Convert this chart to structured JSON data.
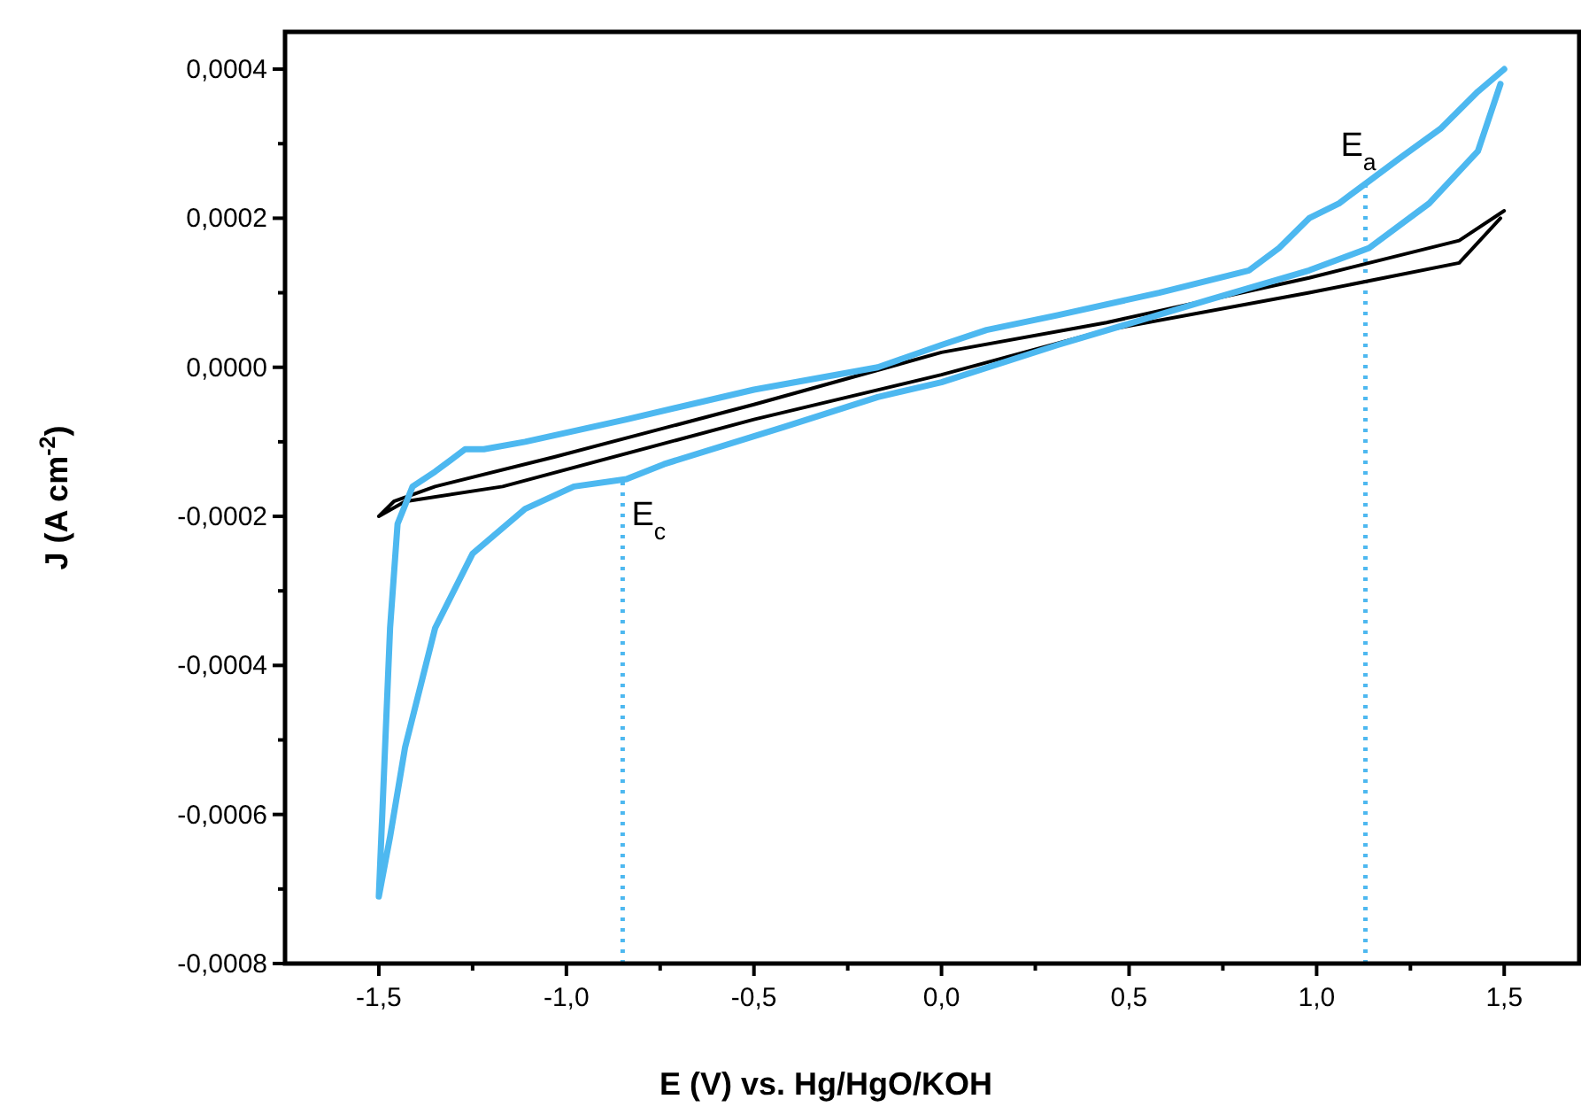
{
  "chart_data": {
    "type": "line",
    "xlabel": "E (V) vs. Hg/HgO/KOH",
    "ylabel": "J (A cm$^{-2}$)",
    "xlim": [
      -1.75,
      1.7
    ],
    "ylim": [
      -0.0008,
      0.00045
    ],
    "xticks": [
      {
        "value": -1.5,
        "label": "-1,5"
      },
      {
        "value": -1.25,
        "label": null
      },
      {
        "value": -1,
        "label": "-1,0"
      },
      {
        "value": -0.75,
        "label": null
      },
      {
        "value": -0.5,
        "label": "-0,5"
      },
      {
        "value": -0.25,
        "label": null
      },
      {
        "value": 0,
        "label": "0,0"
      },
      {
        "value": 0.25,
        "label": null
      },
      {
        "value": 0.5,
        "label": "0,5"
      },
      {
        "value": 0.75,
        "label": null
      },
      {
        "value": 1,
        "label": "1,0"
      },
      {
        "value": 1.25,
        "label": null
      },
      {
        "value": 1.5,
        "label": "1,5"
      }
    ],
    "yticks": [
      {
        "value": -0.0008,
        "label": "-0,0008"
      },
      {
        "value": -0.0007,
        "label": null
      },
      {
        "value": -0.0006,
        "label": "-0,0006"
      },
      {
        "value": -0.0005,
        "label": null
      },
      {
        "value": -0.0004,
        "label": "-0,0004"
      },
      {
        "value": -0.0003,
        "label": null
      },
      {
        "value": -0.0002,
        "label": "-0,0002"
      },
      {
        "value": -0.0001,
        "label": null
      },
      {
        "value": 0,
        "label": "0,0000"
      },
      {
        "value": 0.0001,
        "label": null
      },
      {
        "value": 0.0002,
        "label": "0,0002"
      },
      {
        "value": 0.0003,
        "label": null
      },
      {
        "value": 0.0004,
        "label": "0,0004"
      }
    ],
    "grid": false,
    "marker": "none",
    "line_style": "solid",
    "series": [
      {
        "color": "#000000",
        "x": [
          1.5,
          1.38,
          0.98,
          0.44,
          0,
          -0.5,
          -1.03,
          -1.35,
          -1.46,
          -1.5,
          -1.43,
          -1.17,
          -0.5,
          0,
          0.44,
          0.98,
          1.38,
          1.49
        ],
        "values": [
          0.00021,
          0.00017,
          0.00012,
          6e-05,
          2e-05,
          -5e-05,
          -0.00012,
          -0.00016,
          -0.00018,
          -0.0002,
          -0.00018,
          -0.00016,
          -7e-05,
          -1e-05,
          5e-05,
          0.0001,
          0.00014,
          0.0002
        ]
      },
      {
        "color": "#4db8f0",
        "x": [
          1.5,
          1.43,
          1.33,
          1.22,
          1.14,
          1.06,
          0.98,
          0.9,
          0.82,
          0.58,
          0.31,
          0.12,
          0,
          -0.17,
          -0.5,
          -0.84,
          -1.11,
          -1.22,
          -1.27,
          -1.35,
          -1.41,
          -1.45,
          -1.47,
          -1.49,
          -1.5,
          -1.47,
          -1.43,
          -1.35,
          -1.25,
          -1.11,
          -0.98,
          -0.84,
          -0.74,
          -0.42,
          -0.17,
          0,
          0.31,
          0.71,
          0.98,
          1.14,
          1.3,
          1.43,
          1.49
        ],
        "values": [
          0.0004,
          0.00037,
          0.00032,
          0.00028,
          0.00025,
          0.00022,
          0.0002,
          0.00016,
          0.00013,
          0.0001,
          7e-05,
          5e-05,
          3e-05,
          0,
          -3e-05,
          -7e-05,
          -0.0001,
          -0.00011,
          -0.00011,
          -0.00014,
          -0.00016,
          -0.00021,
          -0.00035,
          -0.00059,
          -0.00071,
          -0.00063,
          -0.00051,
          -0.00035,
          -0.00025,
          -0.00019,
          -0.00016,
          -0.00015,
          -0.00013,
          -8e-05,
          -4e-05,
          -2e-05,
          3e-05,
          9e-05,
          0.00013,
          0.00016,
          0.00022,
          0.00029,
          0.00038
        ]
      }
    ],
    "ref_lines": [
      {
        "axis": "x",
        "value": -0.85,
        "color": "#4db8f0",
        "line_style": "dotted"
      },
      {
        "axis": "x",
        "value": 1.13,
        "color": "#4db8f0",
        "line_style": "dotted"
      }
    ],
    "annotations": [
      {
        "text": "E$_{c}$",
        "x": -0.85,
        "y": -0.00015
      },
      {
        "text": "E$_{a}$",
        "x": 1.13,
        "y": 0.00025
      }
    ]
  }
}
